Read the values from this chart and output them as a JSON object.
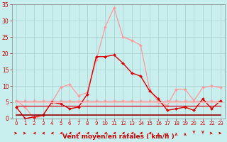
{
  "title": "",
  "xlabel": "Vent moyen/en rafales ( km/h )",
  "xlim": [
    -0.5,
    23.5
  ],
  "ylim": [
    0,
    35
  ],
  "xticks": [
    0,
    1,
    2,
    3,
    4,
    5,
    6,
    7,
    8,
    9,
    10,
    11,
    12,
    13,
    14,
    15,
    16,
    17,
    18,
    19,
    20,
    21,
    22,
    23
  ],
  "yticks": [
    0,
    5,
    10,
    15,
    20,
    25,
    30,
    35
  ],
  "bg_color": "#c8eeee",
  "grid_color": "#aacccc",
  "series": [
    {
      "name": "light_pink_max",
      "color": "#ff9999",
      "lw": 0.9,
      "marker": "D",
      "ms": 2.0,
      "ls": "-",
      "x": [
        0,
        1,
        2,
        3,
        4,
        5,
        6,
        7,
        8,
        9,
        10,
        11,
        12,
        13,
        14,
        15,
        16,
        17,
        18,
        19,
        20,
        21,
        22,
        23
      ],
      "y": [
        5.5,
        3.5,
        0,
        1.0,
        5.0,
        9.5,
        10.5,
        7.0,
        8.0,
        18.0,
        28.0,
        34.0,
        25.0,
        24.0,
        22.5,
        9.0,
        5.0,
        4.0,
        9.0,
        9.0,
        5.5,
        9.5,
        10.0,
        9.5
      ]
    },
    {
      "name": "pink_avg_flat",
      "color": "#ff9999",
      "lw": 0.9,
      "marker": "D",
      "ms": 2.0,
      "ls": "-",
      "x": [
        0,
        1,
        2,
        3,
        4,
        5,
        6,
        7,
        8,
        9,
        10,
        11,
        12,
        13,
        14,
        15,
        16,
        17,
        18,
        19,
        20,
        21,
        22,
        23
      ],
      "y": [
        5.5,
        5.5,
        5.5,
        5.5,
        5.5,
        5.5,
        5.5,
        5.5,
        5.5,
        5.5,
        5.5,
        5.5,
        5.5,
        5.5,
        5.5,
        5.5,
        5.5,
        5.5,
        5.5,
        5.5,
        5.5,
        5.5,
        5.5,
        5.5
      ]
    },
    {
      "name": "dark_red_main",
      "color": "#dd0000",
      "lw": 1.0,
      "marker": "D",
      "ms": 2.0,
      "ls": "-",
      "x": [
        0,
        1,
        2,
        3,
        4,
        5,
        6,
        7,
        8,
        9,
        10,
        11,
        12,
        13,
        14,
        15,
        16,
        17,
        18,
        19,
        20,
        21,
        22,
        23
      ],
      "y": [
        3.5,
        0.0,
        0.5,
        1.0,
        5.0,
        4.5,
        3.0,
        3.5,
        7.5,
        19.0,
        19.0,
        19.5,
        17.0,
        14.0,
        13.0,
        8.5,
        6.0,
        2.5,
        3.0,
        3.5,
        2.5,
        6.0,
        3.0,
        5.5
      ]
    },
    {
      "name": "flat_red_4",
      "color": "#dd0000",
      "lw": 0.9,
      "marker": null,
      "ms": 0,
      "ls": "-",
      "x": [
        0,
        23
      ],
      "y": [
        4.0,
        4.0
      ]
    },
    {
      "name": "flat_darkred_1",
      "color": "#990000",
      "lw": 1.2,
      "marker": null,
      "ms": 0,
      "ls": "-",
      "x": [
        0,
        23
      ],
      "y": [
        1.0,
        1.0
      ]
    },
    {
      "name": "flat_pink_5",
      "color": "#ffbbbb",
      "lw": 0.9,
      "marker": null,
      "ms": 0,
      "ls": "-",
      "x": [
        0,
        23
      ],
      "y": [
        5.0,
        5.0
      ]
    }
  ],
  "arrows": [
    {
      "x": 0,
      "dir": [
        1,
        0
      ]
    },
    {
      "x": 1,
      "dir": [
        1,
        0
      ]
    },
    {
      "x": 2,
      "dir": [
        -1,
        0
      ]
    },
    {
      "x": 3,
      "dir": [
        -1,
        0
      ]
    },
    {
      "x": 4,
      "dir": [
        -1,
        0
      ]
    },
    {
      "x": 5,
      "dir": [
        -1,
        0
      ]
    },
    {
      "x": 6,
      "dir": [
        -1,
        0
      ]
    },
    {
      "x": 7,
      "dir": [
        -1,
        0
      ]
    },
    {
      "x": 8,
      "dir": [
        -1,
        0
      ]
    },
    {
      "x": 9,
      "dir": [
        -1,
        0
      ]
    },
    {
      "x": 10,
      "dir": [
        -1,
        0
      ]
    },
    {
      "x": 11,
      "dir": [
        -1,
        0
      ]
    },
    {
      "x": 12,
      "dir": [
        -1,
        0
      ]
    },
    {
      "x": 13,
      "dir": [
        -1,
        0
      ]
    },
    {
      "x": 14,
      "dir": [
        -1,
        0
      ]
    },
    {
      "x": 15,
      "dir": [
        -1,
        0
      ]
    },
    {
      "x": 16,
      "dir": [
        0,
        1
      ]
    },
    {
      "x": 17,
      "dir": [
        0,
        1
      ]
    },
    {
      "x": 18,
      "dir": [
        0,
        1
      ]
    },
    {
      "x": 19,
      "dir": [
        0,
        1
      ]
    },
    {
      "x": 20,
      "dir": [
        0,
        -1
      ]
    },
    {
      "x": 21,
      "dir": [
        0,
        -1
      ]
    },
    {
      "x": 22,
      "dir": [
        1,
        0
      ]
    },
    {
      "x": 23,
      "dir": [
        1,
        0
      ]
    }
  ],
  "xlabel_color": "#cc0000",
  "tick_color": "#cc0000",
  "arrow_color": "#cc0000"
}
